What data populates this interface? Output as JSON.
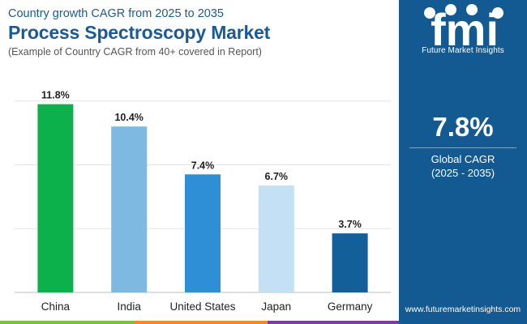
{
  "colors": {
    "panel": "#135a92",
    "title": "#1a5a96",
    "stripe_green": "#7ac143",
    "stripe_orange": "#f28c28",
    "stripe_purple": "#7b3f98"
  },
  "header": {
    "subtitle": "Country growth CAGR from 2025 to 2035",
    "title": "Process Spectroscopy Market",
    "note": "(Example of Country CAGR from 40+ covered in Report)"
  },
  "panel": {
    "logo_text": "fmi",
    "brand": "Future Market Insights",
    "cagr_value": "7.8%",
    "cagr_label": "Global CAGR",
    "cagr_period": "(2025 - 2035)",
    "website": "www.futuremarketinsights.com"
  },
  "chart_data": {
    "type": "bar",
    "title": "Process Spectroscopy Market",
    "categories": [
      "China",
      "India",
      "United States",
      "Japan",
      "Germany"
    ],
    "values": [
      11.8,
      10.4,
      7.4,
      6.7,
      3.7
    ],
    "value_labels": [
      "11.8%",
      "10.4%",
      "7.4%",
      "6.7%",
      "3.7%"
    ],
    "bar_colors": [
      "#0db14b",
      "#7db9e1",
      "#2e8fd6",
      "#c3e0f4",
      "#135f9a"
    ],
    "unit": "%",
    "ylim": [
      0,
      13
    ],
    "grid": true,
    "xlabel": "",
    "ylabel": ""
  }
}
